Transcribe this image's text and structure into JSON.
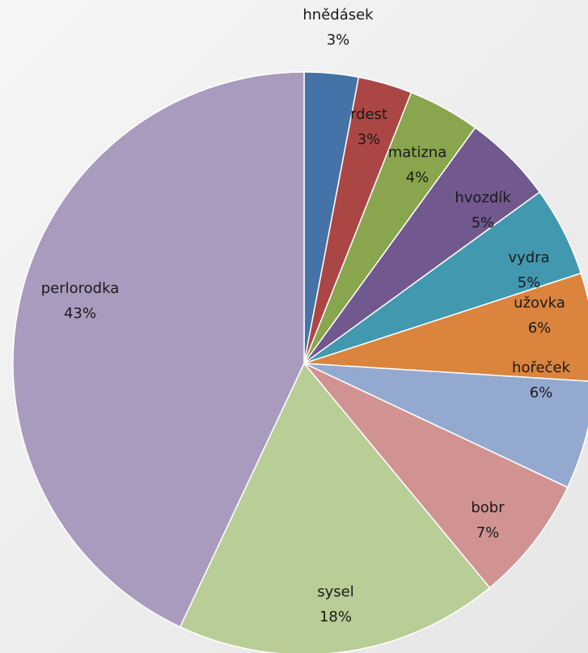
{
  "chart_data": {
    "type": "pie",
    "title": "",
    "legend": "none (labels on slices)",
    "slices": [
      {
        "label": "hnědásek",
        "value": 3,
        "percent_label": "3%",
        "color": "#4572A7"
      },
      {
        "label": "rdest",
        "value": 3,
        "percent_label": "3%",
        "color": "#AA4643"
      },
      {
        "label": "matizna",
        "value": 4,
        "percent_label": "4%",
        "color": "#89A54E"
      },
      {
        "label": "hvozdík",
        "value": 5,
        "percent_label": "5%",
        "color": "#71588F"
      },
      {
        "label": "vydra",
        "value": 5,
        "percent_label": "5%",
        "color": "#4198AF"
      },
      {
        "label": "užovka",
        "value": 6,
        "percent_label": "6%",
        "color": "#DB843D"
      },
      {
        "label": "hořeček",
        "value": 6,
        "percent_label": "6%",
        "color": "#93A9CF"
      },
      {
        "label": "bobr",
        "value": 7,
        "percent_label": "7%",
        "color": "#D19392"
      },
      {
        "label": "sysel",
        "value": 18,
        "percent_label": "18%",
        "color": "#B9CD96"
      },
      {
        "label": "perlorodka",
        "value": 43,
        "percent_label": "43%",
        "color": "#A99BBD"
      }
    ]
  }
}
